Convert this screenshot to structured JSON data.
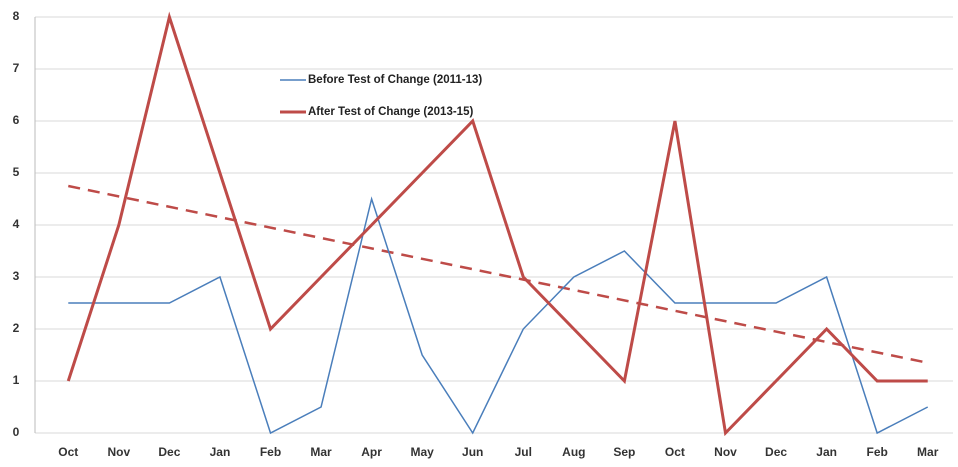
{
  "chart_data": {
    "type": "line",
    "categories": [
      "Oct",
      "Nov",
      "Dec",
      "Jan",
      "Feb",
      "Mar",
      "Apr",
      "May",
      "Jun",
      "Jul",
      "Aug",
      "Sep",
      "Oct",
      "Nov",
      "Dec",
      "Jan",
      "Feb",
      "Mar"
    ],
    "series": [
      {
        "name": "Before Test of Change (2011-13)",
        "color": "#4a7ebb",
        "values": [
          2.5,
          2.5,
          2.5,
          3,
          0,
          0.5,
          4.5,
          1.5,
          0,
          2,
          3,
          3.5,
          2.5,
          2.5,
          2.5,
          3,
          0,
          0.5
        ]
      },
      {
        "name": "After Test of Change (2013-15)",
        "color": "#be4b48",
        "values": [
          1,
          4,
          8,
          5,
          2,
          3,
          4,
          5,
          6,
          3,
          2,
          1,
          6,
          0,
          1,
          2,
          1,
          1
        ]
      }
    ],
    "trendline": {
      "values": [
        4.75,
        1.35
      ],
      "color": "#be4b48",
      "dashed": true
    },
    "ylim": [
      0,
      8
    ],
    "yticks": [
      0,
      1,
      2,
      3,
      4,
      5,
      6,
      7,
      8
    ],
    "grid": true,
    "legend": "upper center"
  }
}
